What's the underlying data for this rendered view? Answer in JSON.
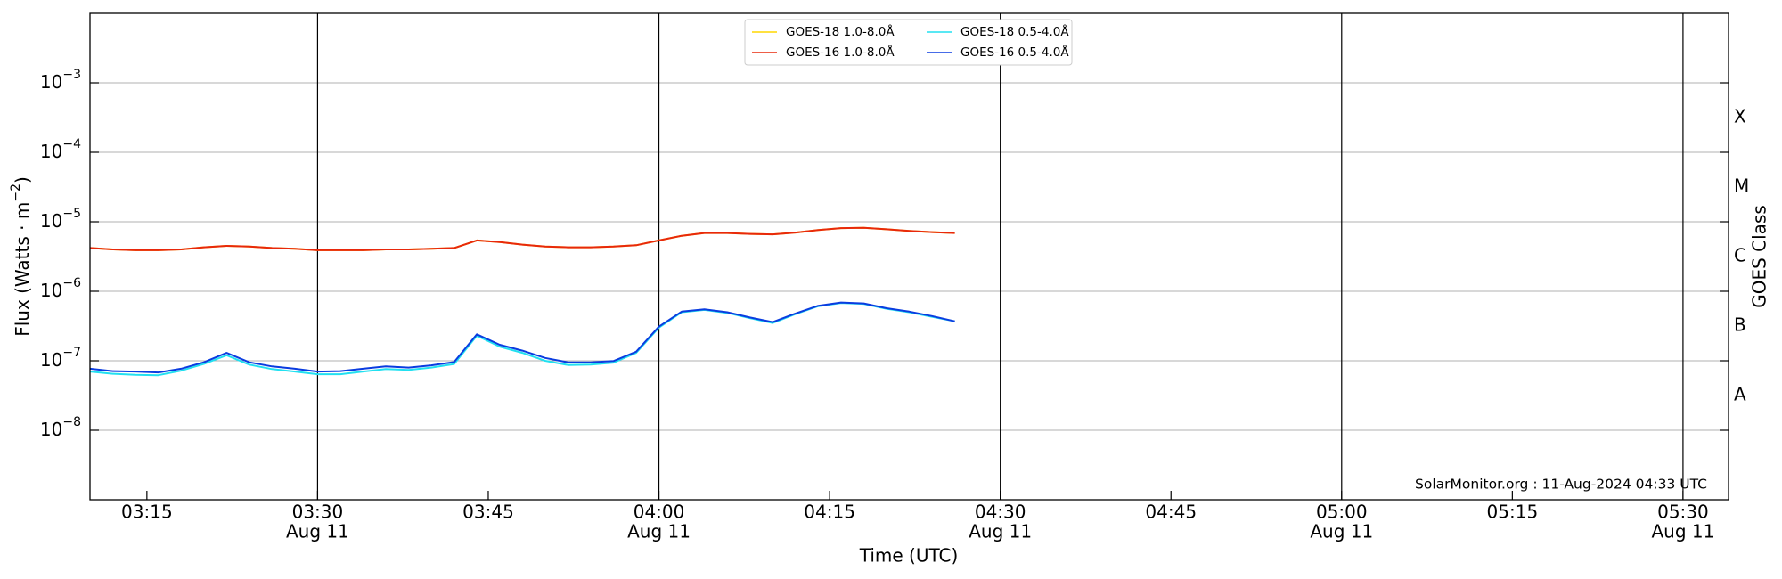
{
  "chart_data": {
    "type": "line",
    "xlabel": "Time (UTC)",
    "ylabel": [
      "Flux (Watts · m",
      "−2",
      ")"
    ],
    "y2label": "GOES Class",
    "annotation": "SolarMonitor.org : 11-Aug-2024 04:33 UTC",
    "log_y": true,
    "grid": true,
    "legend": "upper center",
    "x": [
      "03:10",
      "03:12",
      "03:14",
      "03:16",
      "03:18",
      "03:20",
      "03:22",
      "03:24",
      "03:26",
      "03:28",
      "03:30",
      "03:32",
      "03:34",
      "03:36",
      "03:38",
      "03:40",
      "03:42",
      "03:44",
      "03:46",
      "03:48",
      "03:50",
      "03:52",
      "03:54",
      "03:56",
      "03:58",
      "04:00",
      "04:02",
      "04:04",
      "04:06",
      "04:08",
      "04:10",
      "04:12",
      "04:14",
      "04:16",
      "04:18",
      "04:20",
      "04:22",
      "04:24",
      "04:26"
    ],
    "xlim": [
      "03:10",
      "05:34"
    ],
    "xticks": [
      {
        "value": "03:15",
        "label": "03:15"
      },
      {
        "value": "03:30",
        "label": "03:30",
        "date": "Aug 11"
      },
      {
        "value": "03:45",
        "label": "03:45"
      },
      {
        "value": "04:00",
        "label": "04:00",
        "date": "Aug 11"
      },
      {
        "value": "04:15",
        "label": "04:15"
      },
      {
        "value": "04:30",
        "label": "04:30",
        "date": "Aug 11"
      },
      {
        "value": "04:45",
        "label": "04:45"
      },
      {
        "value": "05:00",
        "label": "05:00",
        "date": "Aug 11"
      },
      {
        "value": "05:15",
        "label": "05:15"
      },
      {
        "value": "05:30",
        "label": "05:30",
        "date": "Aug 11"
      }
    ],
    "ylim": [
      1e-09,
      0.01
    ],
    "yticks": [
      {
        "value": 1e-08,
        "label": "10",
        "exponent": "−8"
      },
      {
        "value": 1e-07,
        "label": "10",
        "exponent": "−7"
      },
      {
        "value": 1e-06,
        "label": "10",
        "exponent": "−6"
      },
      {
        "value": 1e-05,
        "label": "10",
        "exponent": "−5"
      },
      {
        "value": 0.0001,
        "label": "10",
        "exponent": "−4"
      },
      {
        "value": 0.001,
        "label": "10",
        "exponent": "−3"
      }
    ],
    "y2lim": [
      1e-09,
      0.01
    ],
    "y2ticks": [
      {
        "value": 3.162e-08,
        "label": "A"
      },
      {
        "value": 3.162e-07,
        "label": "B"
      },
      {
        "value": 3.162e-06,
        "label": "C"
      },
      {
        "value": 3.162e-05,
        "label": "M"
      },
      {
        "value": 0.0003162,
        "label": "X"
      }
    ],
    "series": [
      {
        "name": "GOES-18 1.0-8.0Å",
        "color": "#ffd700",
        "values": [
          4.2e-06,
          4e-06,
          3.9e-06,
          3.9e-06,
          4e-06,
          4.3e-06,
          4.5e-06,
          4.4e-06,
          4.2e-06,
          4.1e-06,
          3.9e-06,
          3.9e-06,
          3.9e-06,
          4e-06,
          4e-06,
          4.1e-06,
          4.2e-06,
          5.4e-06,
          5.1e-06,
          4.7e-06,
          4.4e-06,
          4.3e-06,
          4.3e-06,
          4.4e-06,
          4.6e-06,
          5.4e-06,
          6.3e-06,
          6.9e-06,
          6.9e-06,
          6.7e-06,
          6.6e-06,
          7e-06,
          7.6e-06,
          8.1e-06,
          8.2e-06,
          7.8e-06,
          7.4e-06,
          7.1e-06,
          6.9e-06
        ]
      },
      {
        "name": "GOES-16 1.0-8.0Å",
        "color": "#e8280c",
        "values": [
          4.2e-06,
          4e-06,
          3.9e-06,
          3.9e-06,
          4e-06,
          4.3e-06,
          4.5e-06,
          4.4e-06,
          4.2e-06,
          4.1e-06,
          3.9e-06,
          3.9e-06,
          3.9e-06,
          4e-06,
          4e-06,
          4.1e-06,
          4.2e-06,
          5.4e-06,
          5.1e-06,
          4.7e-06,
          4.4e-06,
          4.3e-06,
          4.3e-06,
          4.4e-06,
          4.6e-06,
          5.4e-06,
          6.3e-06,
          6.9e-06,
          6.9e-06,
          6.7e-06,
          6.6e-06,
          7e-06,
          7.6e-06,
          8.1e-06,
          8.2e-06,
          7.8e-06,
          7.4e-06,
          7.1e-06,
          6.9e-06
        ]
      },
      {
        "name": "GOES-18 0.5-4.0Å",
        "color": "#22e0f0",
        "values": [
          7e-08,
          6.5e-08,
          6.3e-08,
          6.2e-08,
          7.2e-08,
          9e-08,
          1.2e-07,
          8.8e-08,
          7.6e-08,
          7e-08,
          6.4e-08,
          6.4e-08,
          7e-08,
          7.6e-08,
          7.4e-08,
          8e-08,
          9e-08,
          2.3e-07,
          1.6e-07,
          1.3e-07,
          1e-07,
          8.7e-08,
          8.8e-08,
          9.4e-08,
          1.3e-07,
          3e-07,
          5e-07,
          5.4e-07,
          4.9e-07,
          4.1e-07,
          3.5e-07,
          4.7e-07,
          6.1e-07,
          6.8e-07,
          6.6e-07,
          5.6e-07,
          5e-07,
          4.3e-07,
          3.7e-07
        ]
      },
      {
        "name": "GOES-16 0.5-4.0Å",
        "color": "#0a3ce0",
        "values": [
          7.7e-08,
          7.1e-08,
          7e-08,
          6.8e-08,
          7.7e-08,
          9.5e-08,
          1.3e-07,
          9.5e-08,
          8.3e-08,
          7.7e-08,
          7e-08,
          7.1e-08,
          7.7e-08,
          8.3e-08,
          8e-08,
          8.6e-08,
          9.6e-08,
          2.4e-07,
          1.7e-07,
          1.4e-07,
          1.1e-07,
          9.5e-08,
          9.5e-08,
          9.9e-08,
          1.35e-07,
          3.1e-07,
          5.1e-07,
          5.5e-07,
          5e-07,
          4.2e-07,
          3.6e-07,
          4.8e-07,
          6.2e-07,
          6.9e-07,
          6.7e-07,
          5.7e-07,
          5.1e-07,
          4.4e-07,
          3.7e-07
        ]
      }
    ]
  }
}
